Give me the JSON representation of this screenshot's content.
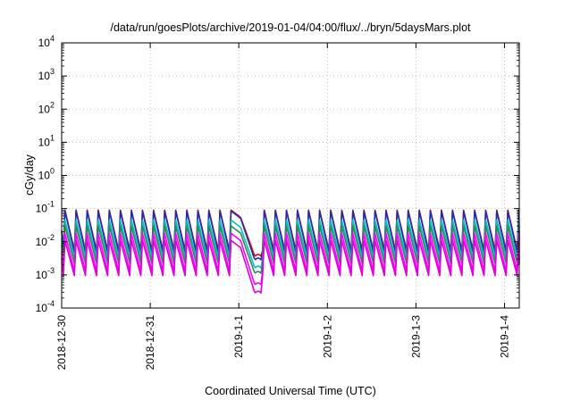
{
  "chart_data": {
    "type": "line",
    "title": "/data/run/goesPlots/archive/2019-01-04/04:00/flux/../bryn/5daysMars.plot",
    "xlabel": "Coordinated Universal Time (UTC)",
    "ylabel": "cGy/day",
    "y_scale": "log",
    "ylim": [
      0.0001,
      10000
    ],
    "y_ticks": [
      {
        "base": "10",
        "exp": "-4",
        "value": 0.0001
      },
      {
        "base": "10",
        "exp": "-3",
        "value": 0.001
      },
      {
        "base": "10",
        "exp": "-2",
        "value": 0.01
      },
      {
        "base": "10",
        "exp": "-1",
        "value": 0.1
      },
      {
        "base": "10",
        "exp": "0",
        "value": 1
      },
      {
        "base": "10",
        "exp": "1",
        "value": 10
      },
      {
        "base": "10",
        "exp": "2",
        "value": 100
      },
      {
        "base": "10",
        "exp": "3",
        "value": 1000
      },
      {
        "base": "10",
        "exp": "4",
        "value": 10000
      }
    ],
    "xlim": [
      "2018-12-30T00:00",
      "2019-01-04T04:00"
    ],
    "x_ticks": [
      "2018-12-30",
      "2018-12-31",
      "2019-1-1",
      "2019-1-2",
      "2019-1-3",
      "2019-1-4"
    ],
    "grid": true,
    "pattern": {
      "description_of_data": "repeating sawtooth, peaks every ~3 hours",
      "period_hours": 3,
      "dip_window": [
        "2019-01-01T00:30",
        "2019-01-01T06:00"
      ]
    },
    "series": [
      {
        "color": "#ee0000",
        "peak": 0.09,
        "trough": 0.0055,
        "dip_floor": 0.0036
      },
      {
        "color": "#1a2fb0",
        "peak": 0.085,
        "trough": 0.0048,
        "dip_floor": 0.0028
      },
      {
        "color": "#00c0c0",
        "peak": 0.045,
        "trough": 0.0032,
        "dip_floor": 0.0016
      },
      {
        "color": "#2e8b57",
        "peak": 0.03,
        "trough": 0.0022,
        "dip_floor": 0.0011
      },
      {
        "color": "#ff00ff",
        "peak": 0.018,
        "trough": 0.0013,
        "dip_floor": 0.0005
      },
      {
        "color": "#dd00dd",
        "peak": 0.011,
        "trough": 0.00095,
        "dip_floor": 0.00028
      }
    ]
  }
}
